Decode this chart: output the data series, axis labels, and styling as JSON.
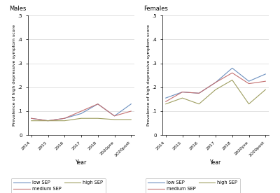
{
  "x_labels": [
    "2014",
    "2015",
    "2016",
    "2017",
    "2018",
    "2020pre",
    "2020post"
  ],
  "x_values": [
    0,
    1,
    2,
    3,
    4,
    5,
    6
  ],
  "males": {
    "low_SEP": [
      0.07,
      0.06,
      0.07,
      0.09,
      0.13,
      0.08,
      0.13
    ],
    "medium_SEP": [
      0.07,
      0.06,
      0.07,
      0.1,
      0.13,
      0.08,
      0.1
    ],
    "high_SEP": [
      0.06,
      0.06,
      0.06,
      0.07,
      0.07,
      0.065,
      0.065
    ]
  },
  "females": {
    "low_SEP": [
      0.155,
      0.18,
      0.175,
      0.22,
      0.28,
      0.225,
      0.255
    ],
    "medium_SEP": [
      0.14,
      0.18,
      0.175,
      0.22,
      0.26,
      0.215,
      0.225
    ],
    "high_SEP": [
      0.13,
      0.155,
      0.13,
      0.19,
      0.23,
      0.13,
      0.19
    ]
  },
  "ylim": [
    0,
    0.5
  ],
  "yticks": [
    0,
    0.1,
    0.2,
    0.3,
    0.4,
    0.5
  ],
  "ytick_labels": [
    "0",
    ".1",
    ".2",
    ".3",
    ".4",
    ".5"
  ],
  "ylabel": "Prevalence of high depressive symptom score",
  "xlabel": "Year",
  "color_low": "#6b8fbf",
  "color_medium": "#c47070",
  "color_high": "#9e9e60",
  "title_males": "Males",
  "title_females": "Females",
  "legend_entries": [
    "low SEP",
    "medium SEP",
    "high SEP"
  ],
  "bg_color": "#ffffff",
  "grid_color": "#d8d8d8"
}
